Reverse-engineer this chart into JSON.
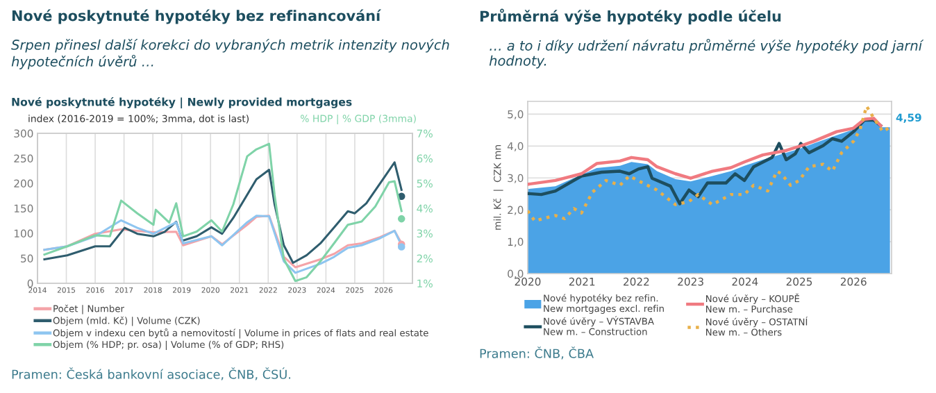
{
  "chart_data": [
    {
      "type": "line",
      "title": "Nové poskytnuté hypotéky bez refinancování",
      "subtitle": "Srpen přinesl další korekci do vybraných metrik intenzity nových hypotečních úvěrů …",
      "annotations": [
        "Nové poskytnuté hypotéky | Newly provided mortgages",
        "Pramen: Česká bankovní asociace, ČNB, ČSÚ."
      ],
      "ylabel": "index (2016-2019 = 100%; 3mma, dot is last)",
      "y2label": "% HDP | % GDP (3mma)",
      "xlim": [
        2014,
        2027
      ],
      "xticks": [
        2014,
        2015,
        2016,
        2017,
        2018,
        2019,
        2020,
        2021,
        2022,
        2023,
        2024,
        2025,
        2026
      ],
      "ylim": [
        0,
        300
      ],
      "yticks": [
        0,
        50,
        100,
        150,
        200,
        250,
        300
      ],
      "y2lim": [
        1,
        7
      ],
      "y2ticks": [
        {
          "value": 1,
          "label": "1%"
        },
        {
          "value": 2,
          "label": "2%"
        },
        {
          "value": 3,
          "label": "3%"
        },
        {
          "value": 4,
          "label": "4%"
        },
        {
          "value": 5,
          "label": "5%"
        },
        {
          "value": 6,
          "label": "6%"
        },
        {
          "value": 7,
          "label": "7%"
        }
      ],
      "grid": "x",
      "legend": "bottom",
      "series": [
        {
          "name": "Počet | Number",
          "color": "#f4a3a8",
          "x": [
            2014.24,
            2015.03,
            2016.0,
            2016.9,
            2017.46,
            2018.02,
            2018.81,
            2019.05,
            2020.03,
            2020.4,
            2021.27,
            2021.59,
            2022.03,
            2022.54,
            2022.94,
            2023.81,
            2024.29,
            2024.76,
            2025.24,
            2025.87,
            2026.38,
            2026.62
          ],
          "values": [
            67,
            74,
            99,
            108,
            105,
            102,
            103,
            76,
            94,
            78,
            117,
            133,
            135,
            53,
            32,
            48,
            59,
            76,
            80,
            92,
            105,
            80
          ]
        },
        {
          "name": "Objem (mld. Kč) | Volume (CZK)",
          "color": "#2f5d6e",
          "x": [
            2014.24,
            2015.03,
            2016.0,
            2016.51,
            2017.02,
            2017.46,
            2018.02,
            2018.41,
            2018.81,
            2019.02,
            2019.52,
            2020.03,
            2020.4,
            2020.79,
            2021.27,
            2021.59,
            2022.03,
            2022.22,
            2022.54,
            2022.86,
            2023.33,
            2023.81,
            2024.29,
            2024.76,
            2025.0,
            2025.4,
            2025.87,
            2026.38,
            2026.62
          ],
          "values": [
            48,
            56,
            74,
            74,
            111,
            99,
            94,
            103,
            123,
            85,
            94,
            112,
            99,
            131,
            177,
            208,
            227,
            158,
            76,
            41,
            56,
            80,
            112,
            144,
            140,
            160,
            199,
            242,
            187
          ]
        },
        {
          "name": "Objem v indexu cen bytů a nemovitostí | Volume in prices of flats and real estate",
          "color": "#8ec5f0",
          "x": [
            2014.24,
            2015.03,
            2016.0,
            2016.9,
            2017.46,
            2018.02,
            2018.81,
            2019.05,
            2020.03,
            2020.4,
            2021.27,
            2021.59,
            2022.03,
            2022.54,
            2022.94,
            2023.81,
            2024.29,
            2024.76,
            2025.24,
            2025.87,
            2026.38,
            2026.62
          ],
          "values": [
            67,
            74,
            94,
            126,
            111,
            99,
            122,
            80,
            94,
            76,
            122,
            135,
            134,
            44,
            21,
            39,
            53,
            71,
            76,
            90,
            105,
            76
          ]
        },
        {
          "name": "Objem (% HDP; pr. osa) | Volume (% of GDP; RHS)",
          "color": "#7fd3a8",
          "axis": "y2",
          "x": [
            2014.24,
            2015.03,
            2016.0,
            2016.51,
            2016.9,
            2017.46,
            2018.02,
            2018.1,
            2018.57,
            2018.81,
            2019.05,
            2019.52,
            2020.03,
            2020.4,
            2020.79,
            2021.27,
            2021.59,
            2022.03,
            2022.22,
            2022.54,
            2022.94,
            2023.33,
            2023.81,
            2024.29,
            2024.76,
            2025.24,
            2025.71,
            2026.19,
            2026.38,
            2026.62
          ],
          "values": [
            2.15,
            2.48,
            2.92,
            2.88,
            4.31,
            3.8,
            3.34,
            3.94,
            3.43,
            4.2,
            2.88,
            3.07,
            3.52,
            3.07,
            4.16,
            6.08,
            6.36,
            6.58,
            4.53,
            1.97,
            1.09,
            1.24,
            1.88,
            2.61,
            3.34,
            3.47,
            4.07,
            5.04,
            5.08,
            3.89
          ]
        },
        {
          "type": "scatter",
          "color": "#f4a3a8",
          "marker": "circle",
          "x": [
            2026.62
          ],
          "values": [
            78
          ]
        },
        {
          "type": "scatter",
          "color": "#2f5d6e",
          "marker": "circle",
          "x": [
            2026.62
          ],
          "values": [
            174
          ]
        },
        {
          "type": "scatter",
          "color": "#8ec5f0",
          "marker": "circle",
          "x": [
            2026.62
          ],
          "values": [
            73
          ]
        },
        {
          "type": "scatter",
          "color": "#7fd3a8",
          "marker": "circle",
          "axis": "y2",
          "x": [
            2026.62
          ],
          "values": [
            3.58
          ]
        }
      ]
    },
    {
      "type": "area",
      "title": "Průměrná výše hypotéky podle účelu",
      "subtitle": "… a to i díky udržení návratu průměrné výše hypotéky pod jarní hodnoty.",
      "annotations": [
        {
          "text": "4,59",
          "x": 2026.67,
          "y": 4.59
        },
        "Pramen: ČNB, ČBA"
      ],
      "ylabel": "mil. Kč  |  CZK mn",
      "xlim": [
        2020,
        2026.7
      ],
      "xticks": [
        2020,
        2021,
        2022,
        2023,
        2024,
        2025,
        2026
      ],
      "ylim": [
        0,
        5.4
      ],
      "yticks": [
        {
          "value": 0,
          "label": "0,0"
        },
        {
          "value": 1,
          "label": "1,0"
        },
        {
          "value": 2,
          "label": "2,0"
        },
        {
          "value": 3,
          "label": "3,0"
        },
        {
          "value": 4,
          "label": "4,0"
        },
        {
          "value": 5,
          "label": "5,0"
        }
      ],
      "grid": "y",
      "legend": "bottom",
      "series": [
        {
          "name": "Nové hypotéky bez refin.\nNew mortgages excl. refin",
          "type": "area",
          "color": "#4ba3e6",
          "x": [
            2020.0,
            2020.51,
            2020.99,
            2021.27,
            2021.7,
            2021.91,
            2022.21,
            2022.38,
            2022.72,
            2023.0,
            2023.4,
            2023.74,
            2023.99,
            2024.33,
            2024.76,
            2025.0,
            2025.27,
            2025.69,
            2026.0,
            2026.2,
            2026.37,
            2026.5,
            2026.67
          ],
          "values": [
            2.65,
            2.74,
            3.1,
            3.31,
            3.38,
            3.5,
            3.43,
            3.21,
            2.96,
            2.89,
            3.06,
            3.21,
            3.38,
            3.57,
            3.79,
            3.91,
            4.08,
            4.34,
            4.52,
            4.81,
            4.84,
            4.59,
            4.59
          ]
        },
        {
          "name": "Nové úvěry – VÝSTAVBA\nNew m. – Construction",
          "type": "line",
          "color": "#1d4e5f",
          "x": [
            2020.0,
            2020.25,
            2020.51,
            2020.99,
            2021.36,
            2021.7,
            2021.87,
            2022.04,
            2022.21,
            2022.29,
            2022.63,
            2022.8,
            2022.97,
            2023.14,
            2023.31,
            2023.65,
            2023.82,
            2023.99,
            2024.16,
            2024.5,
            2024.63,
            2024.76,
            2024.93,
            2025.03,
            2025.18,
            2025.44,
            2025.61,
            2025.78,
            2026.0,
            2026.2,
            2026.37,
            2026.5
          ],
          "values": [
            2.51,
            2.48,
            2.59,
            3.06,
            3.18,
            3.21,
            3.13,
            3.28,
            3.35,
            2.99,
            2.74,
            2.19,
            2.62,
            2.41,
            2.84,
            2.84,
            3.13,
            2.92,
            3.35,
            3.64,
            4.08,
            3.57,
            3.76,
            4.08,
            3.79,
            4.01,
            4.23,
            4.15,
            4.45,
            4.81,
            4.81,
            4.64
          ]
        },
        {
          "name": "Nové úvěry – KOUPĚ\nNew m. – Purchase",
          "type": "line",
          "color": "#f07a80",
          "x": [
            2020.0,
            2020.51,
            2020.99,
            2021.27,
            2021.7,
            2021.91,
            2022.21,
            2022.38,
            2022.72,
            2023.0,
            2023.4,
            2023.74,
            2023.99,
            2024.33,
            2024.76,
            2025.0,
            2025.27,
            2025.69,
            2026.0,
            2026.2,
            2026.37,
            2026.5
          ],
          "values": [
            2.8,
            2.92,
            3.13,
            3.45,
            3.53,
            3.64,
            3.57,
            3.35,
            3.13,
            2.99,
            3.21,
            3.32,
            3.5,
            3.72,
            3.86,
            3.99,
            4.15,
            4.45,
            4.56,
            4.84,
            4.87,
            4.64
          ]
        },
        {
          "name": "Nové úvěry – OSTATNÍ\nNew m. – Others",
          "type": "line",
          "line_style": "dotted",
          "color": "#e8b04a",
          "x": [
            2020.0,
            2020.13,
            2020.34,
            2020.51,
            2020.68,
            2020.85,
            2020.99,
            2021.19,
            2021.44,
            2021.7,
            2021.87,
            2022.12,
            2022.38,
            2022.72,
            2022.97,
            2023.14,
            2023.4,
            2023.74,
            2023.99,
            2024.16,
            2024.42,
            2024.59,
            2024.67,
            2024.84,
            2025.0,
            2025.18,
            2025.44,
            2025.61,
            2025.78,
            2026.0,
            2026.12,
            2026.24,
            2026.37,
            2026.54,
            2026.67
          ],
          "values": [
            1.97,
            1.65,
            1.75,
            1.82,
            1.72,
            2.04,
            1.9,
            2.55,
            2.92,
            2.77,
            3.06,
            2.84,
            2.62,
            2.16,
            2.26,
            2.48,
            2.16,
            2.48,
            2.48,
            2.77,
            2.59,
            3.21,
            3.13,
            2.77,
            2.92,
            3.35,
            3.43,
            3.21,
            3.79,
            4.15,
            4.52,
            5.25,
            4.88,
            4.45,
            4.59
          ]
        }
      ]
    }
  ]
}
